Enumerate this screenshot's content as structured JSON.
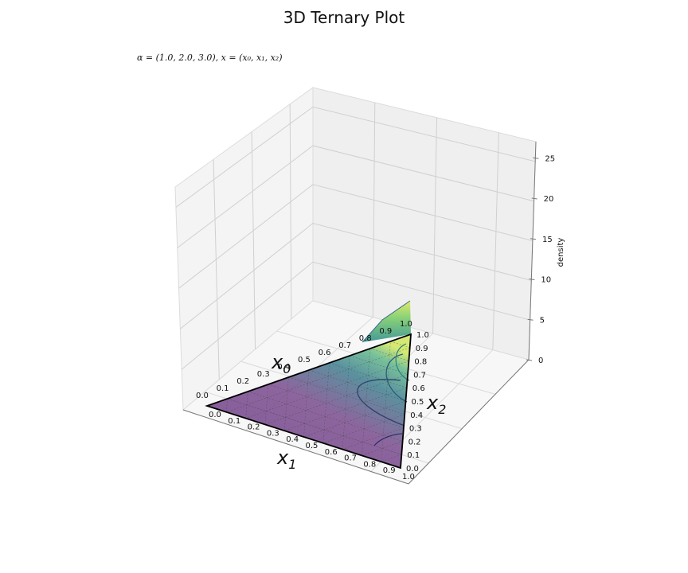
{
  "chart_data": {
    "type": "surface",
    "title": "3D Ternary Plot",
    "subtitle": "α = (1.0, 2.0, 3.0), x = (x₀, x₁, x₂)",
    "alpha": [
      1.0,
      2.0,
      3.0
    ],
    "zlabel": "density",
    "zlim": [
      0,
      27
    ],
    "z_ticks": [
      "0",
      "5",
      "10",
      "15",
      "20",
      "25"
    ],
    "axes": [
      {
        "name": "x₀",
        "ticks": [
          "0.0",
          "0.1",
          "0.2",
          "0.3",
          "0.4",
          "0.5",
          "0.6",
          "0.7",
          "0.8",
          "0.9",
          "1.0"
        ]
      },
      {
        "name": "x₁",
        "ticks": [
          "0.0",
          "0.1",
          "0.2",
          "0.3",
          "0.4",
          "0.5",
          "0.6",
          "0.7",
          "0.8",
          "0.9",
          "1.0"
        ]
      },
      {
        "name": "x₂",
        "ticks": [
          "0.0",
          "0.1",
          "0.2",
          "0.3",
          "0.4",
          "0.5",
          "0.6",
          "0.7",
          "0.8",
          "0.9",
          "1.0"
        ]
      }
    ],
    "colormap": "viridis",
    "colors": {
      "low": "#440154",
      "mid": "#21918c",
      "high": "#fde725",
      "edge": "#000000"
    },
    "grid": true
  }
}
